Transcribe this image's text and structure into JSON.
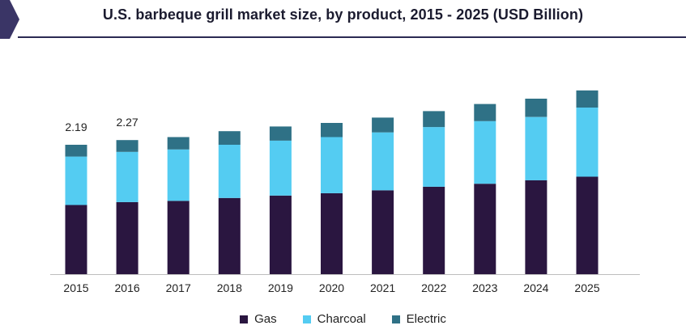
{
  "colors": {
    "title": "#1b1b2f",
    "rule": "#2b2a52",
    "accent": "#3a3566",
    "gas": "#2a1640",
    "charcoal": "#54ccf2",
    "electric": "#2f7186",
    "text": "#222222"
  },
  "chart_data": {
    "type": "bar",
    "stacked": true,
    "title": "U.S. barbeque grill market size, by product, 2015 - 2025 (USD Billion)",
    "xlabel": "",
    "ylabel": "",
    "categories": [
      "2015",
      "2016",
      "2017",
      "2018",
      "2019",
      "2020",
      "2021",
      "2022",
      "2023",
      "2024",
      "2025"
    ],
    "series": [
      {
        "name": "Gas",
        "color_key": "gas",
        "values": [
          1.17,
          1.22,
          1.24,
          1.29,
          1.33,
          1.37,
          1.42,
          1.48,
          1.53,
          1.59,
          1.65
        ]
      },
      {
        "name": "Charcoal",
        "color_key": "charcoal",
        "values": [
          0.82,
          0.85,
          0.87,
          0.9,
          0.93,
          0.95,
          0.98,
          1.01,
          1.06,
          1.07,
          1.17
        ]
      },
      {
        "name": "Electric",
        "color_key": "electric",
        "values": [
          0.2,
          0.2,
          0.21,
          0.23,
          0.24,
          0.24,
          0.25,
          0.27,
          0.29,
          0.31,
          0.29
        ]
      }
    ],
    "data_labels": [
      {
        "category": "2015",
        "text": "2.19"
      },
      {
        "category": "2016",
        "text": "2.27"
      }
    ],
    "ylim": [
      0,
      3.2
    ],
    "grid": false,
    "legend_position": "bottom"
  }
}
